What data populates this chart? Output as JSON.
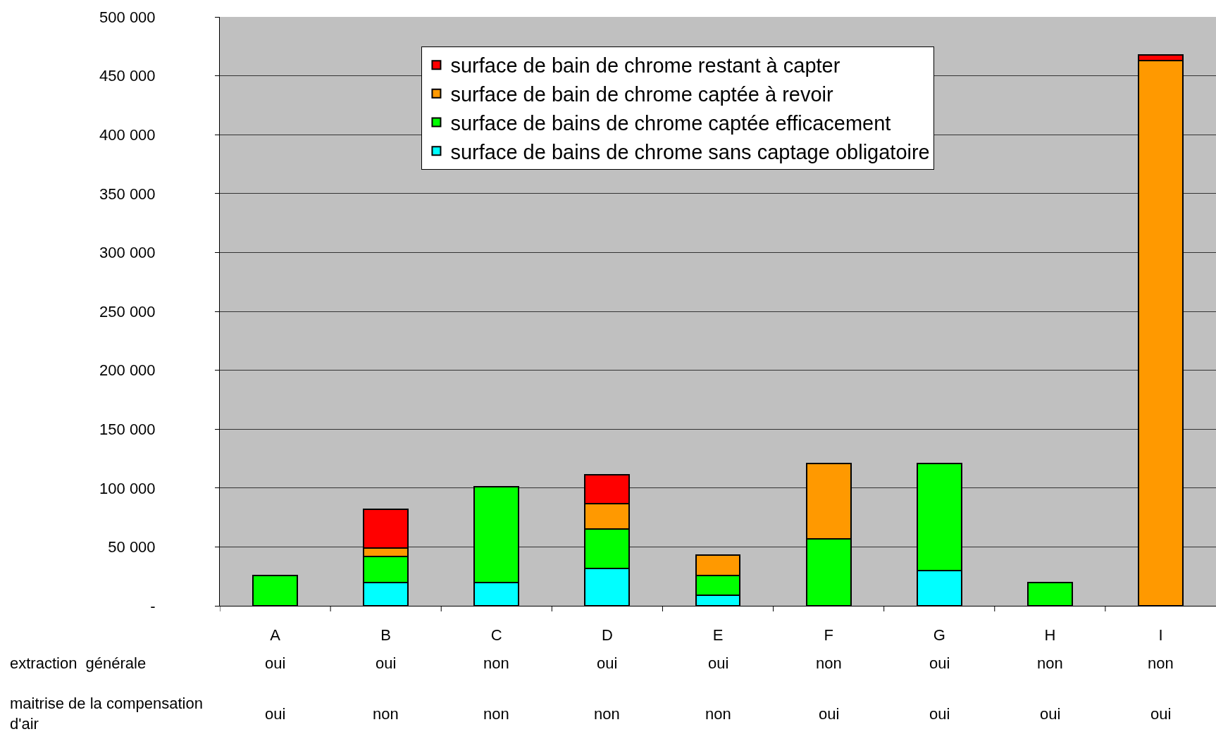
{
  "chart_data": {
    "type": "bar",
    "stacked": true,
    "categories": [
      "A",
      "B",
      "C",
      "D",
      "E",
      "F",
      "G",
      "H",
      "I"
    ],
    "series": [
      {
        "name": "surface de bains de chrome sans captage obligatoire",
        "color": "#00ffff",
        "values": [
          null,
          20000,
          20000,
          32000,
          9000,
          null,
          30000,
          null,
          null
        ]
      },
      {
        "name": "surface de bains de chrome captée efficacement",
        "color": "#00ff00",
        "values": [
          26000,
          22000,
          81000,
          33000,
          17000,
          57000,
          91000,
          20000,
          null
        ]
      },
      {
        "name": "surface de bain de chrome captée à revoir",
        "color": "#ff9900",
        "values": [
          null,
          7000,
          null,
          22000,
          17000,
          64000,
          null,
          null,
          463000
        ]
      },
      {
        "name": "surface de bain de chrome restant à capter",
        "color": "#ff0000",
        "values": [
          null,
          33000,
          null,
          24000,
          null,
          null,
          null,
          null,
          5000
        ]
      }
    ],
    "ylim": [
      0,
      500000
    ],
    "yticks": [
      {
        "value": 0,
        "label": "-"
      },
      {
        "value": 50000,
        "label": "50 000"
      },
      {
        "value": 100000,
        "label": "100 000"
      },
      {
        "value": 150000,
        "label": "150 000"
      },
      {
        "value": 200000,
        "label": "200 000"
      },
      {
        "value": 250000,
        "label": "250 000"
      },
      {
        "value": 300000,
        "label": "300 000"
      },
      {
        "value": 350000,
        "label": "350 000"
      },
      {
        "value": 400000,
        "label": "400 000"
      },
      {
        "value": 450000,
        "label": "450 000"
      },
      {
        "value": 500000,
        "label": "500 000"
      }
    ],
    "grid": "y",
    "legend": "top",
    "annotations": [
      "extraction  générale",
      "oui",
      "oui",
      "non",
      "oui",
      "oui",
      "non",
      "oui",
      "non",
      "non",
      "maitrise de la compensation\nd'air",
      "oui",
      "non",
      "non",
      "non",
      "non",
      "oui",
      "oui",
      "oui",
      "oui"
    ]
  }
}
